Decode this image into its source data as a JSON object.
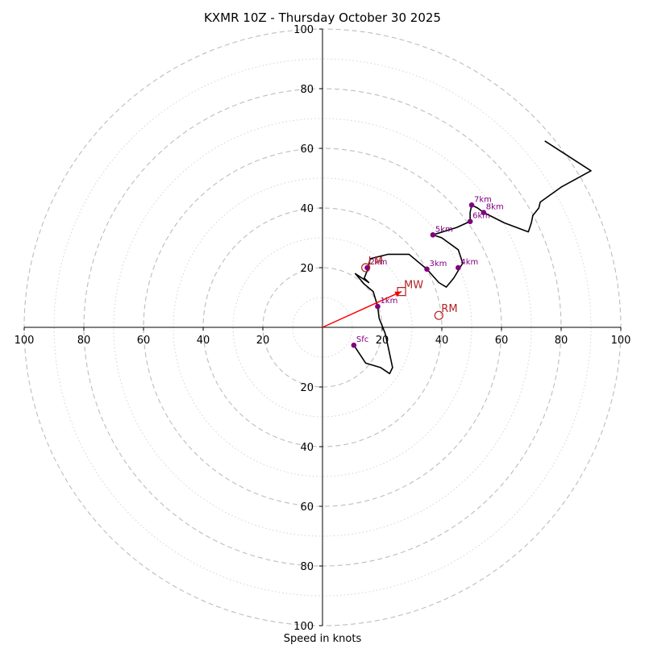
{
  "chart_data": {
    "type": "hodograph",
    "title": "KXMR 10Z - Thursday October 30 2025",
    "xlabel": "Speed in knots",
    "xlim": [
      -100,
      100
    ],
    "ylim": [
      -100,
      100
    ],
    "ring_major": [
      20,
      40,
      60,
      80,
      100
    ],
    "ring_minor": [
      10,
      30,
      50,
      70,
      90
    ],
    "x_tick_labels": [
      {
        "value": -100,
        "label": "100"
      },
      {
        "value": -80,
        "label": "80"
      },
      {
        "value": -60,
        "label": "60"
      },
      {
        "value": -40,
        "label": "40"
      },
      {
        "value": -20,
        "label": "20"
      },
      {
        "value": 20,
        "label": "20"
      },
      {
        "value": 40,
        "label": "40"
      },
      {
        "value": 60,
        "label": "60"
      },
      {
        "value": 80,
        "label": "80"
      },
      {
        "value": 100,
        "label": "100"
      }
    ],
    "y_tick_labels": [
      {
        "value": 100,
        "label": "100"
      },
      {
        "value": 80,
        "label": "80"
      },
      {
        "value": 60,
        "label": "60"
      },
      {
        "value": 40,
        "label": "40"
      },
      {
        "value": 20,
        "label": "20"
      },
      {
        "value": -20,
        "label": "20"
      },
      {
        "value": -40,
        "label": "40"
      },
      {
        "value": -60,
        "label": "60"
      },
      {
        "value": -80,
        "label": "80"
      },
      {
        "value": -100,
        "label": "100"
      }
    ],
    "hodograph_trace": [
      [
        10.5,
        -6.0
      ],
      [
        14.5,
        -12.0
      ],
      [
        19.5,
        -13.5
      ],
      [
        22.5,
        -15.5
      ],
      [
        23.5,
        -13.5
      ],
      [
        22.0,
        -6.5
      ],
      [
        21.0,
        -2.0
      ],
      [
        20.0,
        0.5
      ],
      [
        19.0,
        3.0
      ],
      [
        18.5,
        7.0
      ],
      [
        17.0,
        12.0
      ],
      [
        14.0,
        14.5
      ],
      [
        11.0,
        18.0
      ],
      [
        15.5,
        15.0
      ],
      [
        14.0,
        16.5
      ],
      [
        15.0,
        19.0
      ],
      [
        16.0,
        23.0
      ],
      [
        22.0,
        24.5
      ],
      [
        29.0,
        24.5
      ],
      [
        35.0,
        19.5
      ],
      [
        39.0,
        15.0
      ],
      [
        41.5,
        13.5
      ],
      [
        44.0,
        16.5
      ],
      [
        47.0,
        21.5
      ],
      [
        45.5,
        26.0
      ],
      [
        40.0,
        30.0
      ],
      [
        37.0,
        31.0
      ],
      [
        45.0,
        33.5
      ],
      [
        49.5,
        35.5
      ],
      [
        49.5,
        38.5
      ],
      [
        50.0,
        41.0
      ],
      [
        52.0,
        40.0
      ],
      [
        54.0,
        38.5
      ],
      [
        61.0,
        35.0
      ],
      [
        69.0,
        32.0
      ],
      [
        70.0,
        35.0
      ],
      [
        70.5,
        37.5
      ],
      [
        72.5,
        40.0
      ],
      [
        73.0,
        42.0
      ],
      [
        80.0,
        47.0
      ],
      [
        90.0,
        52.5
      ],
      [
        74.5,
        62.5
      ]
    ],
    "height_markers": [
      {
        "label": "Sfc",
        "u": 10.5,
        "v": -6.0
      },
      {
        "label": "1km",
        "u": 18.5,
        "v": 7.0
      },
      {
        "label": "2km",
        "u": 15.0,
        "v": 20.0
      },
      {
        "label": "3km",
        "u": 35.0,
        "v": 19.5
      },
      {
        "label": "4km",
        "u": 45.5,
        "v": 20.0
      },
      {
        "label": "5km",
        "u": 37.0,
        "v": 31.0
      },
      {
        "label": "6km",
        "u": 49.5,
        "v": 35.5
      },
      {
        "label": "7km",
        "u": 50.0,
        "v": 41.0
      },
      {
        "label": "8km",
        "u": 54.0,
        "v": 38.5
      }
    ],
    "storm_motions": [
      {
        "label": "MW",
        "u": 26.5,
        "v": 12.0,
        "marker": "square"
      },
      {
        "label": "RM",
        "u": 39.0,
        "v": 4.0,
        "marker": "circle"
      },
      {
        "label": "LM",
        "u": 14.5,
        "v": 20.0,
        "marker": "circle"
      }
    ],
    "mean_wind_vector": {
      "from": [
        0,
        0
      ],
      "to": [
        26.5,
        12.0
      ],
      "color": "#ff0000"
    },
    "colors": {
      "trace": "#000000",
      "height_marker": "#800080",
      "storm_motion": "#b22222",
      "ring": "#bdbdbd",
      "axis": "#000000"
    }
  }
}
